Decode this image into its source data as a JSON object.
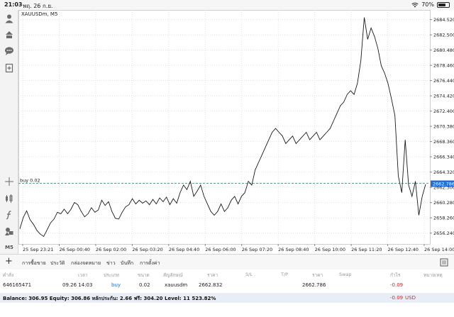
{
  "status": {
    "time": "21:03",
    "date": "พฤ. 26 ก.ย.",
    "battery": "70%",
    "battery_fraction": 0.7
  },
  "chart": {
    "symbol_label": "XAUUSDm, M5",
    "line_color": "#1a1a1a",
    "order_line_color": "#2e7d6a",
    "price_tag_color": "#1e6fd9",
    "order_label": "buy 0.02",
    "current_price_tag": "2662.786"
  },
  "chart_data": {
    "type": "line",
    "series": [
      {
        "values": [
          2656.8,
          2658.3,
          2659.2,
          2658.0,
          2657.4,
          2656.6,
          2656.1,
          2655.8,
          2656.7,
          2657.6,
          2658.1,
          2659.0,
          2658.8,
          2659.4,
          2658.8,
          2659.4,
          2660.3,
          2660.0,
          2659.1,
          2658.4,
          2658.8,
          2659.6,
          2659.0,
          2659.3,
          2660.6,
          2659.9,
          2660.4,
          2659.1,
          2658.2,
          2658.1,
          2659.0,
          2659.7,
          2660.0,
          2660.8,
          2660.1,
          2660.6,
          2660.2,
          2660.5,
          2660.0,
          2660.7,
          2660.1,
          2660.9,
          2660.4,
          2661.0,
          2660.0,
          2660.8,
          2660.2,
          2661.6,
          2662.6,
          2662.0,
          2663.1,
          2661.1,
          2661.8,
          2662.6,
          2661.1,
          2660.1,
          2659.1,
          2658.6,
          2659.1,
          2660.1,
          2659.1,
          2659.6,
          2660.6,
          2661.1,
          2660.1,
          2661.1,
          2661.6,
          2663.1,
          2662.6,
          2664.6,
          2665.6,
          2666.6,
          2667.6,
          2668.6,
          2669.6,
          2670.1,
          2669.6,
          2669.1,
          2668.1,
          2668.6,
          2669.1,
          2668.1,
          2668.6,
          2669.1,
          2669.6,
          2668.6,
          2669.1,
          2669.6,
          2668.6,
          2669.1,
          2669.6,
          2670.1,
          2671.1,
          2672.1,
          2673.1,
          2673.6,
          2674.6,
          2675.1,
          2674.6,
          2676.1,
          2679.1,
          2684.8,
          2681.9,
          2683.4,
          2682.3,
          2680.7,
          2678.4,
          2677.4,
          2676.0,
          2674.0,
          2671.8,
          2663.8,
          2661.6,
          2668.6,
          2662.6,
          2661.1,
          2663.1,
          2658.6,
          2661.1,
          2662.7
        ],
        "color": "#1a1a1a"
      }
    ],
    "x_tick_labels": [
      "25 Sep 23:21",
      "26 Sep 00:40",
      "26 Sep 02:00",
      "26 Sep 03:20",
      "26 Sep 04:40",
      "26 Sep 06:00",
      "26 Sep 07:20",
      "26 Sep 08:40",
      "26 Sep 10:00",
      "26 Sep 11:20",
      "26 Sep 12:40",
      "26 Sep 14:00"
    ],
    "y_ticks": [
      2684.52,
      2682.5,
      2680.48,
      2678.46,
      2676.44,
      2674.42,
      2672.4,
      2670.38,
      2668.36,
      2666.34,
      2664.32,
      2662.3,
      2660.28,
      2658.26,
      2656.24
    ],
    "ylim": [
      2654.8,
      2685.8
    ],
    "order_line_value": 2662.83,
    "last_value": 2662.786,
    "grid": true,
    "xlabel": "",
    "ylabel": ""
  },
  "tabs": [
    {
      "label": "การซื้อขาย",
      "active": true
    },
    {
      "label": "ประวัติ",
      "active": false
    },
    {
      "label": "กล่องจดหมาย",
      "active": false
    },
    {
      "label": "ข่าว",
      "active": false
    },
    {
      "label": "บันทึก",
      "active": false
    },
    {
      "label": "การตั้งค่า",
      "active": false
    }
  ],
  "columns": [
    "คำสั่ง",
    "เวลา",
    "ประเภท",
    "ขนาด",
    "สัญลักษณ์",
    "ราคา",
    "S/L",
    "T/P",
    "ราคา",
    "Swap",
    "กำไร",
    "หมายเหตุ"
  ],
  "order": {
    "id": "646165471",
    "time": "09.26 14:03",
    "type": "buy",
    "size": "0.02",
    "symbol": "xauusdm",
    "open_price": "2662.832",
    "sl": "",
    "tp": "",
    "price": "2662.786",
    "swap": "",
    "profit": "-0.09",
    "note": ""
  },
  "balance": {
    "summary": "Balance: 306.95 Equity: 306.86 หลักประกัน: 2.66 ฟรี: 304.20 Level: 11 523.82%",
    "total": "-0.09",
    "currency": "USD"
  }
}
